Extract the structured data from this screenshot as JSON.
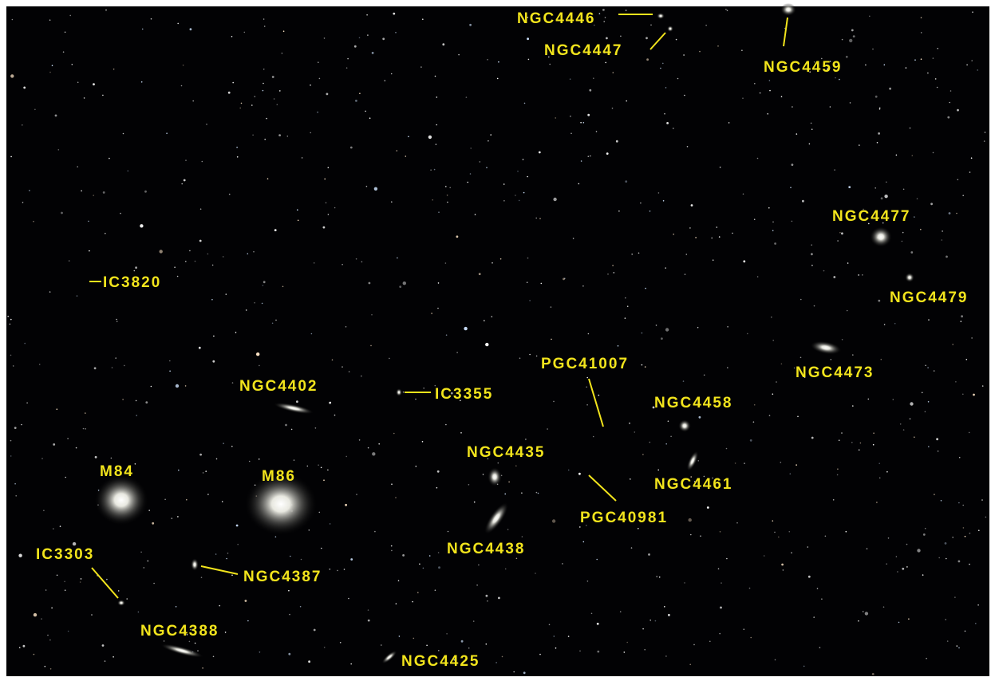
{
  "labels": [
    "NGC4446",
    "NGC4447",
    "NGC4459",
    "NGC4477",
    "NGC4479",
    "IC3820",
    "NGC4473",
    "PGC41007",
    "NGC4402",
    "IC3355",
    "NGC4458",
    "NGC4435",
    "NGC4461",
    "M84",
    "M86",
    "PGC40981",
    "NGC4438",
    "IC3303",
    "NGC4387",
    "NGC4388",
    "NGC4425"
  ]
}
